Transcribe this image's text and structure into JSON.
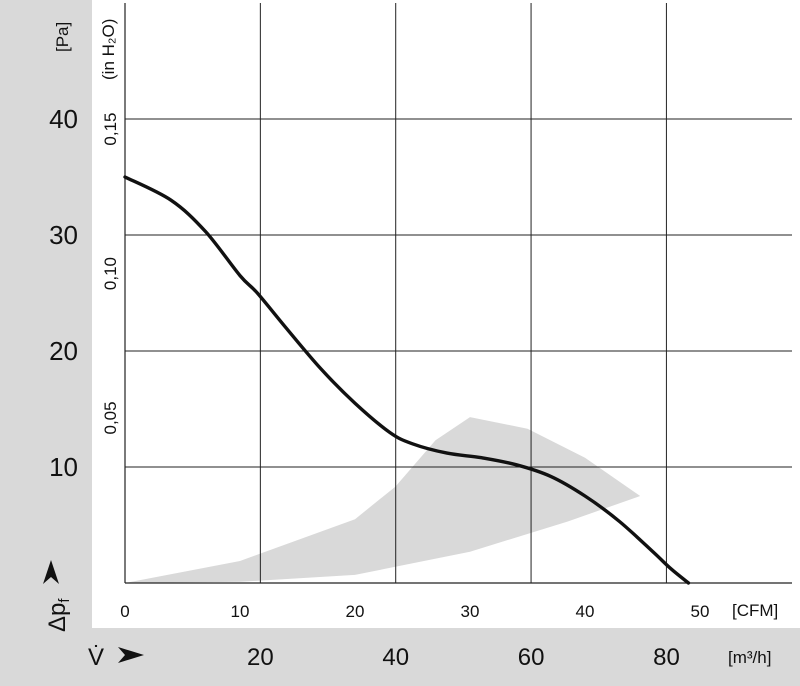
{
  "chart_data": {
    "type": "line",
    "title": "",
    "x_axis": {
      "unit_label": "[CFM]",
      "range": [
        0,
        58
      ],
      "ticks": [
        0,
        10,
        20,
        30,
        40,
        50
      ],
      "tick_labels": [
        "0",
        "10",
        "20",
        "30",
        "40",
        "50"
      ],
      "gridlines": [
        11.77,
        23.54,
        35.31,
        47.08
      ]
    },
    "x2_axis": {
      "symbol": "V̇",
      "unit_label": "[m³/h]",
      "ticks": [
        20,
        40,
        60,
        80
      ],
      "tick_labels": [
        "20",
        "40",
        "60",
        "80"
      ]
    },
    "y_axis": {
      "symbol": "Δp",
      "symbol_subscript": "f",
      "unit_label": "[Pa]",
      "range": [
        0,
        50
      ],
      "ticks": [
        10,
        20,
        30,
        40
      ],
      "tick_labels": [
        "10",
        "20",
        "30",
        "40"
      ]
    },
    "y2_axis": {
      "unit_label": "(in H₂O)",
      "ticks": [
        0.05,
        0.1,
        0.15
      ],
      "tick_labels": [
        "0,05",
        "0,10",
        "0,15"
      ]
    },
    "grid": true,
    "series": [
      {
        "x": [
          0,
          4,
          7,
          10,
          11.5,
          14,
          17,
          20,
          23,
          25,
          28,
          31,
          34,
          37,
          40,
          43,
          46,
          47.5,
          49
        ],
        "y": [
          35,
          33,
          30.3,
          26.5,
          25,
          22,
          18.5,
          15.5,
          13,
          12,
          11.2,
          10.8,
          10.2,
          9.2,
          7.5,
          5.3,
          2.6,
          1.2,
          0
        ],
        "color": "#111111"
      }
    ],
    "shaded_region": {
      "color": "#d9d9d9",
      "x": [
        0,
        10,
        20,
        23.5,
        27,
        30,
        35,
        40,
        44.8,
        38.5,
        30,
        20,
        10,
        0
      ],
      "y": [
        0,
        1.9,
        5.5,
        8.3,
        12.3,
        14.3,
        13.3,
        10.8,
        7.5,
        5.3,
        2.7,
        0.7,
        0.1,
        0
      ]
    }
  }
}
